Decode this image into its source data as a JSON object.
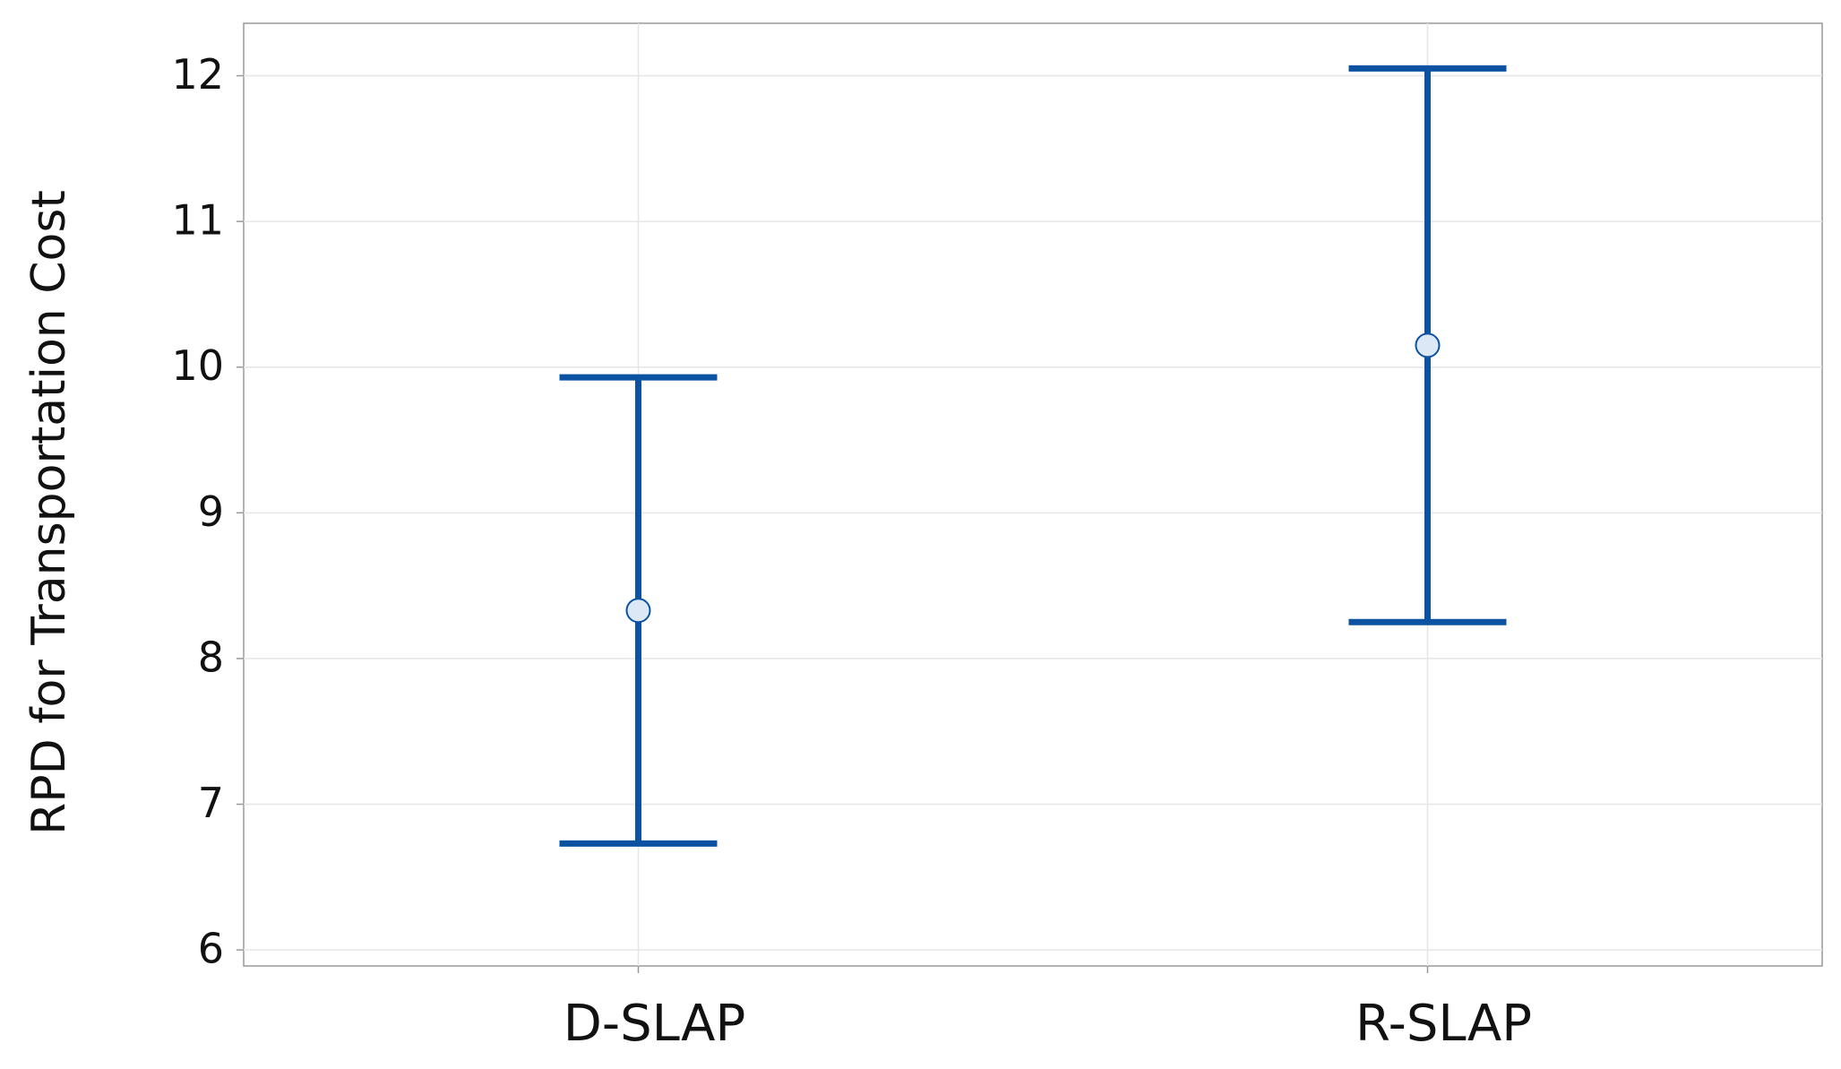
{
  "chart_data": {
    "type": "errorbar",
    "y_label": "RPD for Transportation Cost",
    "categories": [
      "D-SLAP",
      "R-SLAP"
    ],
    "values": [
      8.33,
      10.15
    ],
    "errors": [
      1.6,
      1.9
    ],
    "color": "#0b52a3",
    "ylim": [
      5.89,
      12.36
    ],
    "yticks": [
      6,
      7,
      8,
      9,
      10,
      11,
      12
    ],
    "grid": true
  }
}
